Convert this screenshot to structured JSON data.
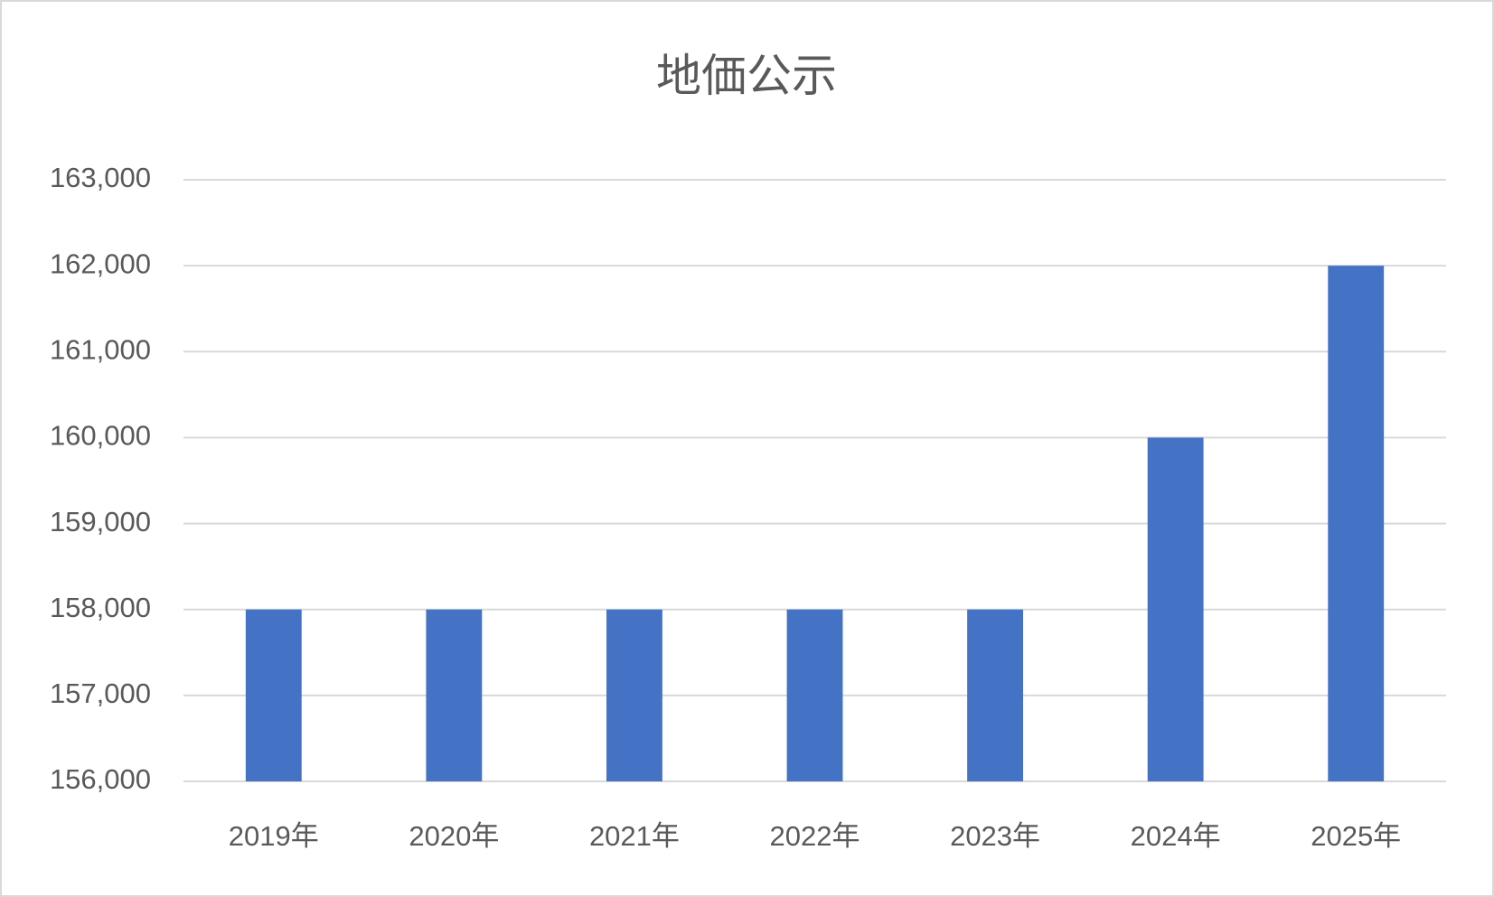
{
  "chart_data": {
    "type": "bar",
    "title": "地価公示",
    "categories": [
      "2019年",
      "2020年",
      "2021年",
      "2022年",
      "2023年",
      "2024年",
      "2025年"
    ],
    "values": [
      158000,
      158000,
      158000,
      158000,
      158000,
      160000,
      162000
    ],
    "color": "#4472c4",
    "ylim": [
      156000,
      163000
    ],
    "yticks": [
      {
        "value": 156000,
        "label": "156,000"
      },
      {
        "value": 157000,
        "label": "157,000"
      },
      {
        "value": 158000,
        "label": "158,000"
      },
      {
        "value": 159000,
        "label": "159,000"
      },
      {
        "value": 160000,
        "label": "160,000"
      },
      {
        "value": 161000,
        "label": "161,000"
      },
      {
        "value": 162000,
        "label": "162,000"
      },
      {
        "value": 163000,
        "label": "163,000"
      }
    ],
    "grid": true
  }
}
